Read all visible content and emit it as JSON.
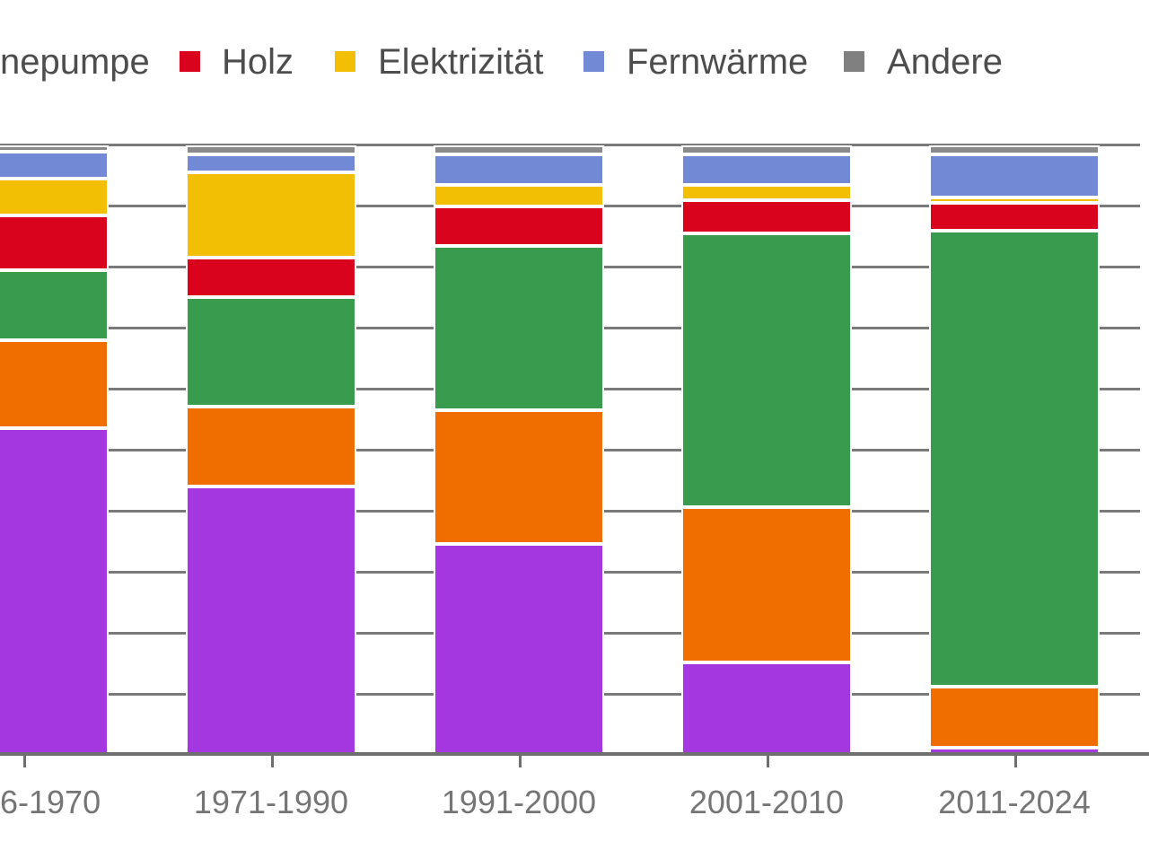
{
  "legend": {
    "items": [
      {
        "label": "nepumpe",
        "color": null,
        "cut_off_left": true
      },
      {
        "label": "Holz",
        "color": "#d9031d",
        "cut_off_left": false
      },
      {
        "label": "Elektrizität",
        "color": "#f2bf05",
        "cut_off_left": false
      },
      {
        "label": "Fernwärme",
        "color": "#7289d6",
        "cut_off_left": false
      },
      {
        "label": "Andere",
        "color": "#808080",
        "cut_off_left": false
      }
    ]
  },
  "chart_data": {
    "type": "bar",
    "variant": "stacked-100-percent-columns",
    "categories": [
      "6-1970",
      "1971-1990",
      "1991-2000",
      "2001-2010",
      "2011-2024"
    ],
    "first_category_cut_off_left": true,
    "series": [
      {
        "name": "",
        "legend_visible": false,
        "color": "#a537e0",
        "values": [
          53.5,
          44.0,
          34.5,
          15.0,
          1.0
        ]
      },
      {
        "name": "",
        "legend_visible": false,
        "color": "#f06e00",
        "values": [
          14.5,
          13.0,
          22.0,
          25.5,
          10.0
        ]
      },
      {
        "name": "nepumpe",
        "legend_visible": true,
        "legend_cut_off": true,
        "color": "#389b4e",
        "values": [
          11.5,
          18.0,
          27.0,
          45.0,
          75.0
        ]
      },
      {
        "name": "Holz",
        "legend_visible": true,
        "color": "#d9031d",
        "values": [
          9.0,
          6.5,
          6.5,
          5.5,
          4.5
        ]
      },
      {
        "name": "Elektrizität",
        "legend_visible": true,
        "color": "#f2bf05",
        "values": [
          6.0,
          14.0,
          3.5,
          2.5,
          1.0
        ]
      },
      {
        "name": "Fernwärme",
        "legend_visible": true,
        "color": "#7289d6",
        "values": [
          4.5,
          3.0,
          5.0,
          5.0,
          7.0
        ]
      },
      {
        "name": "Andere",
        "legend_visible": true,
        "color": "#8a8a8a",
        "values": [
          1.0,
          1.5,
          1.5,
          1.5,
          1.5
        ]
      }
    ],
    "stack_order_bottom_to_top": [
      "purple",
      "orange",
      "green",
      "red",
      "yellow",
      "blue",
      "gray"
    ],
    "ylim": [
      0,
      100
    ],
    "grid": true,
    "gridline_step_percent": 10,
    "y_tick_labels_visible": false,
    "legend_position": "top",
    "axis_color": "#6f6f6f",
    "gridline_color": "#7a7a7a",
    "title": "",
    "xlabel": "",
    "ylabel": ""
  }
}
